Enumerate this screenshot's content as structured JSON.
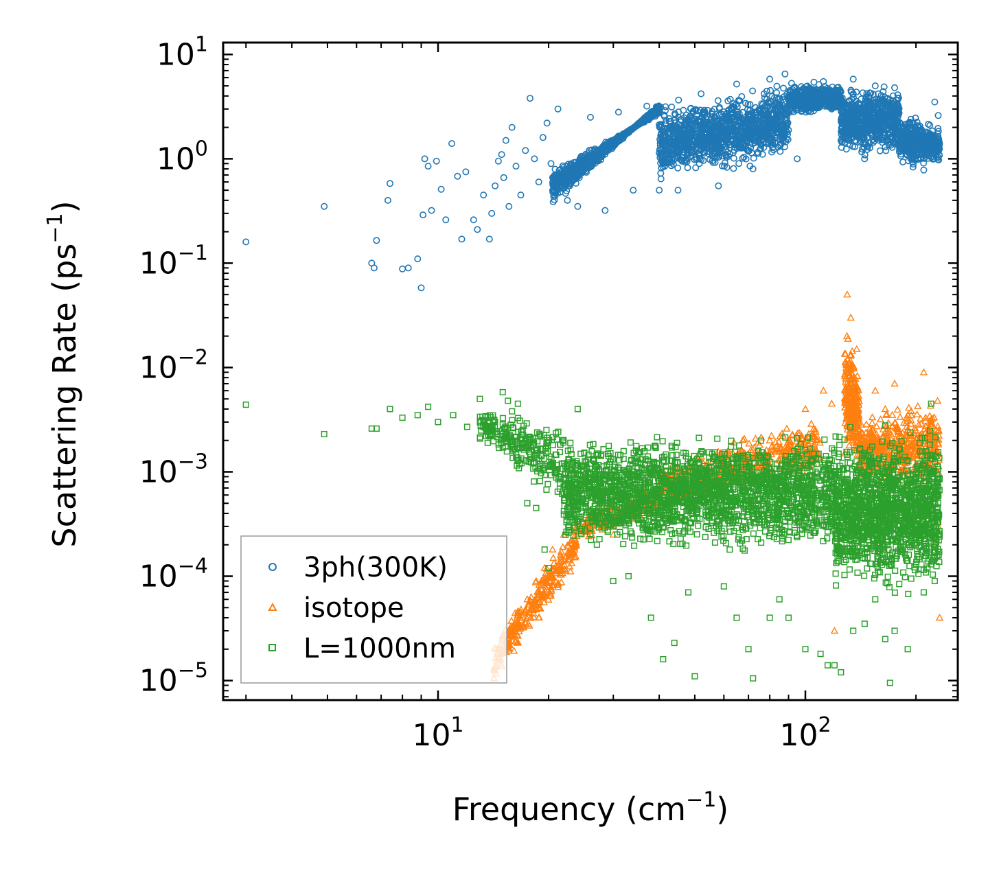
{
  "chart_data": {
    "type": "scatter",
    "xlabel": "Frequency (cm",
    "xlabel_exp": "−1",
    "xlabel_suffix": ")",
    "ylabel": "Scattering Rate (ps",
    "ylabel_exp": "−1",
    "ylabel_suffix": ")",
    "xscale": "log",
    "yscale": "log",
    "xlim": [
      2.6,
      260
    ],
    "ylim": [
      6.5e-06,
      13
    ],
    "x_ticks": [
      {
        "value": 10,
        "base": "10",
        "exp": "1"
      },
      {
        "value": 100,
        "base": "10",
        "exp": "2"
      }
    ],
    "y_ticks": [
      {
        "value": 10,
        "base": "10",
        "exp": "1"
      },
      {
        "value": 1,
        "base": "10",
        "exp": "0"
      },
      {
        "value": 0.1,
        "base": "10",
        "exp": "−1"
      },
      {
        "value": 0.01,
        "base": "10",
        "exp": "−2"
      },
      {
        "value": 0.001,
        "base": "10",
        "exp": "−3"
      },
      {
        "value": 0.0001,
        "base": "10",
        "exp": "−4"
      },
      {
        "value": 1e-05,
        "base": "10",
        "exp": "−5"
      }
    ],
    "legend_position": "lower-left",
    "series": [
      {
        "name": "3ph(300K)",
        "marker": "circle",
        "color": "#1f77b4",
        "points": [
          [
            3.0,
            0.16
          ],
          [
            4.9,
            0.35
          ],
          [
            6.6,
            0.1
          ],
          [
            6.7,
            0.09
          ],
          [
            6.8,
            0.165
          ],
          [
            7.3,
            0.4
          ],
          [
            7.4,
            0.58
          ],
          [
            8.0,
            0.088
          ],
          [
            8.3,
            0.09
          ],
          [
            8.8,
            0.11
          ],
          [
            9.0,
            0.058
          ],
          [
            9.1,
            0.29
          ],
          [
            9.2,
            1.0
          ],
          [
            9.4,
            0.85
          ],
          [
            9.6,
            0.32
          ],
          [
            9.9,
            0.95
          ],
          [
            10.2,
            0.51
          ],
          [
            10.5,
            0.26
          ],
          [
            10.9,
            1.4
          ],
          [
            11.3,
            0.68
          ],
          [
            11.6,
            0.17
          ],
          [
            11.9,
            0.75
          ],
          [
            12.5,
            0.26
          ],
          [
            12.8,
            0.21
          ],
          [
            13.3,
            0.45
          ],
          [
            13.8,
            0.17
          ],
          [
            14.0,
            0.3
          ],
          [
            14.3,
            0.55
          ],
          [
            14.6,
            0.95
          ],
          [
            14.9,
            1.1
          ],
          [
            15.1,
            0.66
          ],
          [
            15.3,
            1.5
          ],
          [
            15.6,
            0.35
          ],
          [
            15.9,
            2.0
          ],
          [
            16.3,
            0.85
          ],
          [
            16.8,
            0.45
          ],
          [
            17.3,
            1.2
          ],
          [
            17.8,
            3.8
          ],
          [
            18.3,
            1.0
          ],
          [
            18.8,
            0.6
          ],
          [
            19.3,
            1.6
          ],
          [
            19.8,
            2.2
          ],
          [
            20.3,
            0.9
          ],
          [
            21.2,
            3.0
          ],
          [
            22.5,
            0.4
          ],
          [
            24.0,
            0.35
          ],
          [
            26.0,
            2.5
          ],
          [
            28.5,
            0.32
          ],
          [
            31.0,
            2.8
          ],
          [
            34.0,
            0.5
          ],
          [
            37.0,
            3.2
          ],
          [
            40.0,
            0.5
          ],
          [
            45.0,
            0.5
          ],
          [
            52.0,
            4.2
          ],
          [
            58.0,
            0.55
          ],
          [
            65.0,
            5.2
          ],
          [
            72.0,
            0.8
          ],
          [
            80.0,
            5.8
          ],
          [
            88.0,
            6.5
          ],
          [
            95.0,
            1.0
          ],
          [
            105.0,
            4.2
          ],
          [
            112.0,
            5.5
          ],
          [
            118.0,
            3.0
          ],
          [
            125.0,
            1.5
          ],
          [
            135.0,
            5.8
          ],
          [
            145.0,
            1.0
          ],
          [
            155.0,
            5.0
          ],
          [
            165.0,
            1.3
          ],
          [
            175.0,
            4.8
          ],
          [
            185.0,
            2.0
          ],
          [
            195.0,
            1.0
          ],
          [
            210.0,
            0.78
          ],
          [
            225.0,
            3.5
          ],
          [
            230.0,
            2.6
          ],
          [
            232.0,
            1.4
          ]
        ],
        "bands": [
          {
            "x": [
              20.5,
              40
            ],
            "y_lo": [
              0.32,
              3.5
            ],
            "y_hi": [
              0.85,
              2.6
            ],
            "density": 900
          },
          {
            "x": [
              40,
              90
            ],
            "y_lo": [
              0.55,
              0.95
            ],
            "y_hi": [
              3.5,
              5.8
            ],
            "density": 1200
          },
          {
            "x": [
              90,
              125
            ],
            "y_lo": [
              2.5,
              2.8
            ],
            "y_hi": [
              5.5,
              5.5
            ],
            "density": 500
          },
          {
            "x": [
              125,
              180
            ],
            "y_lo": [
              1.0,
              1.0
            ],
            "y_hi": [
              5.0,
              5.5
            ],
            "density": 700
          },
          {
            "x": [
              180,
              232
            ],
            "y_lo": [
              0.8,
              0.8
            ],
            "y_hi": [
              3.0,
              2.2
            ],
            "density": 400
          }
        ]
      },
      {
        "name": "isotope",
        "marker": "triangle",
        "color": "#ff7f0e",
        "points": [
          [
            14.2,
            1.05e-05
          ],
          [
            14.8,
            1.6e-05
          ],
          [
            15.4,
            2.2e-05
          ],
          [
            16.0,
            3.2e-05
          ],
          [
            16.8,
            4.5e-05
          ],
          [
            17.5,
            6e-05
          ],
          [
            18.5,
            9e-05
          ],
          [
            19.5,
            0.00012
          ],
          [
            20.5,
            0.00018
          ],
          [
            22.0,
            0.00025
          ],
          [
            24.0,
            0.00035
          ],
          [
            26.0,
            0.0003
          ],
          [
            28.0,
            0.00028
          ],
          [
            30.0,
            0.00025
          ],
          [
            35.0,
            0.0006
          ],
          [
            45.0,
            0.0009
          ],
          [
            60.0,
            0.0011
          ],
          [
            80.0,
            0.002
          ],
          [
            100.0,
            0.004
          ],
          [
            112.0,
            0.006
          ],
          [
            118.0,
            0.0045
          ],
          [
            120.0,
            3e-05
          ],
          [
            128.0,
            0.0015
          ],
          [
            130.0,
            0.05
          ],
          [
            133.0,
            0.03
          ],
          [
            138.0,
            0.015
          ],
          [
            145.0,
            0.002
          ],
          [
            155.0,
            0.006
          ],
          [
            165.0,
            0.004
          ],
          [
            175.0,
            0.007
          ],
          [
            180.0,
            0.0009
          ],
          [
            190.0,
            0.0035
          ],
          [
            200.0,
            0.001
          ],
          [
            210.0,
            0.009
          ],
          [
            220.0,
            0.003
          ],
          [
            225.0,
            0.0002
          ],
          [
            230.0,
            0.0003
          ],
          [
            232.0,
            4e-05
          ]
        ],
        "bands": [
          {
            "x": [
              14.2,
              24
            ],
            "y_lo": [
              9.5e-06,
              0.00012
            ],
            "y_hi": [
              2.5e-05,
              0.00038
            ],
            "density": 300
          },
          {
            "x": [
              24,
              40
            ],
            "y_lo": [
              0.0002,
              0.0004
            ],
            "y_hi": [
              0.0004,
              0.0008
            ],
            "density": 200
          },
          {
            "x": [
              40,
              110
            ],
            "y_lo": [
              0.0004,
              0.0008
            ],
            "y_hi": [
              0.0012,
              0.004
            ],
            "density": 500
          },
          {
            "x": [
              128,
              140
            ],
            "y_lo": [
              0.001,
              0.001
            ],
            "y_hi": [
              0.04,
              0.012
            ],
            "density": 250
          },
          {
            "x": [
              140,
              232
            ],
            "y_lo": [
              0.0006,
              0.0006
            ],
            "y_hi": [
              0.004,
              0.006
            ],
            "density": 500
          }
        ]
      },
      {
        "name": "L=1000nm",
        "marker": "square",
        "color": "#2ca02c",
        "points": [
          [
            3.0,
            0.0044
          ],
          [
            4.9,
            0.0023
          ],
          [
            6.6,
            0.0026
          ],
          [
            6.8,
            0.0026
          ],
          [
            7.4,
            0.004
          ],
          [
            8.0,
            0.0033
          ],
          [
            8.8,
            0.0035
          ],
          [
            9.4,
            0.0042
          ],
          [
            10.0,
            0.003
          ],
          [
            11.0,
            0.0035
          ],
          [
            12.0,
            0.0027
          ],
          [
            13.0,
            0.005
          ],
          [
            14.0,
            0.0025
          ],
          [
            15.0,
            0.0058
          ],
          [
            15.5,
            0.0048
          ],
          [
            16.5,
            0.0045
          ],
          [
            17.5,
            0.0005
          ],
          [
            18.5,
            0.00045
          ],
          [
            19.5,
            0.00018
          ],
          [
            20.0,
            0.00012
          ],
          [
            24.0,
            0.004
          ],
          [
            30.0,
            9e-05
          ],
          [
            33.0,
            0.0001
          ],
          [
            38.0,
            4e-05
          ],
          [
            41.0,
            1.6e-05
          ],
          [
            44.0,
            2.3e-05
          ],
          [
            48.0,
            7e-05
          ],
          [
            50.0,
            1.1e-05
          ],
          [
            60.0,
            8e-05
          ],
          [
            65.0,
            4e-05
          ],
          [
            70.0,
            2e-05
          ],
          [
            72.0,
            1.05e-05
          ],
          [
            80.0,
            4e-05
          ],
          [
            85.0,
            6e-05
          ],
          [
            90.0,
            4e-05
          ],
          [
            100.0,
            2e-05
          ],
          [
            110.0,
            1.8e-05
          ],
          [
            115.0,
            1.4e-05
          ],
          [
            120.0,
            1.4e-05
          ],
          [
            125.0,
            1.2e-05
          ],
          [
            135.0,
            3e-05
          ],
          [
            145.0,
            3.5e-05
          ],
          [
            155.0,
            6e-05
          ],
          [
            165.0,
            2.5e-05
          ],
          [
            170.0,
            9.5e-06
          ],
          [
            175.0,
            3e-05
          ],
          [
            190.0,
            2e-05
          ],
          [
            200.0,
            0.0004
          ],
          [
            210.0,
            7e-05
          ],
          [
            220.0,
            0.0045
          ],
          [
            225.0,
            9e-05
          ],
          [
            230.0,
            0.0004
          ]
        ],
        "bands": [
          {
            "x": [
              13,
              22
            ],
            "y_lo": [
              0.0018,
              0.0004
            ],
            "y_hi": [
              0.0045,
              0.0035
            ],
            "density": 250
          },
          {
            "x": [
              22,
              120
            ],
            "y_lo": [
              0.00015,
              0.00015
            ],
            "y_hi": [
              0.0025,
              0.0028
            ],
            "density": 2200
          },
          {
            "x": [
              120,
              232
            ],
            "y_lo": [
              6e-05,
              6e-05
            ],
            "y_hi": [
              0.0028,
              0.0032
            ],
            "density": 1400
          }
        ]
      }
    ]
  }
}
